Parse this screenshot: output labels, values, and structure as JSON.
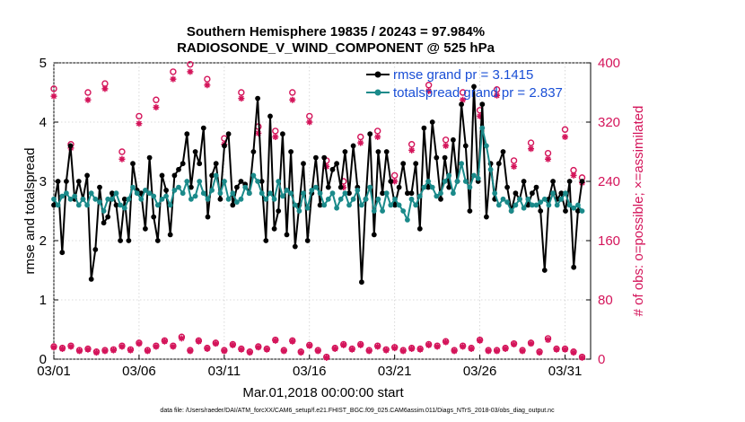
{
  "chart_data": {
    "type": "line",
    "title_line1": "Southern Hemisphere 19835 / 20243 = 97.984%",
    "title_line2": "RADIOSONDE_V_WIND_COMPONENT @ 525 hPa",
    "xlabel": "Mar.01,2018 00:00:00 start",
    "ylabel_left": "rmse and totalspread",
    "ylabel_right": "# of obs: o=possible; ×=assimilated",
    "footer": "data file: /Users/raeder/DAI/ATM_forcXX/CAM6_setup/f.e21.FHIST_BGC.f09_025.CAM6assim.011/Diags_NTrS_2018-03/obs_diag_output.nc",
    "xlim": [
      0,
      31.5
    ],
    "xticks": [
      0,
      5,
      10,
      15,
      20,
      25,
      30
    ],
    "xtick_labels": [
      "03/01",
      "03/06",
      "03/11",
      "03/16",
      "03/21",
      "03/26",
      "03/31"
    ],
    "ylim_left": [
      0,
      5
    ],
    "yticks_left": [
      0,
      1,
      2,
      3,
      4,
      5
    ],
    "ylim_right": [
      0,
      400
    ],
    "yticks_right": [
      0,
      80,
      160,
      240,
      320,
      400
    ],
    "legend": {
      "position": "top-right",
      "entries": [
        "rmse grand pr = 3.1415",
        "totalspread grand pr = 2.837"
      ]
    },
    "colors": {
      "rmse": "#000000",
      "spread": "#1a8a8a",
      "obs": "#d4145a",
      "legend_text": "#1a4fd6"
    },
    "series": [
      {
        "name": "rmse",
        "axis": "left",
        "values": [
          2.6,
          3.0,
          1.8,
          3.0,
          3.6,
          2.7,
          3.0,
          2.7,
          3.1,
          1.35,
          1.85,
          2.9,
          2.3,
          2.4,
          2.8,
          2.6,
          2.0,
          2.7,
          2.0,
          3.3,
          2.85,
          2.8,
          2.2,
          3.4,
          2.4,
          2.0,
          3.1,
          2.85,
          2.1,
          3.1,
          3.2,
          3.3,
          3.8,
          2.9,
          3.5,
          3.3,
          3.9,
          2.4,
          3.1,
          3.3,
          2.7,
          3.6,
          3.8,
          2.6,
          2.9,
          3.0,
          2.95,
          2.8,
          3.5,
          4.4,
          3.0,
          2.0,
          4.1,
          2.2,
          2.5,
          3.8,
          2.1,
          3.5,
          1.9,
          2.6,
          3.3,
          2.0,
          2.8,
          3.4,
          2.6,
          3.4,
          2.9,
          3.2,
          3.3,
          2.9,
          3.5,
          2.8,
          3.6,
          2.9,
          1.3,
          2.7,
          3.8,
          2.1,
          3.5,
          2.8,
          3.5,
          3.0,
          2.6,
          2.9,
          3.3,
          2.8,
          2.8,
          3.3,
          2.2,
          3.9,
          2.9,
          4.0,
          3.4,
          2.7,
          3.4,
          2.9,
          3.7,
          3.0,
          4.3,
          3.6,
          2.5,
          4.6,
          3.0,
          4.3,
          2.4,
          3.3,
          2.7,
          3.3,
          3.5,
          2.9,
          2.5,
          2.8,
          2.7,
          3.0,
          2.6,
          2.8,
          2.9,
          2.5,
          1.5,
          2.7,
          3.0,
          2.7,
          2.8,
          2.5,
          3.0,
          1.55,
          2.5,
          3.0
        ]
      },
      {
        "name": "totalspread",
        "axis": "left",
        "values": [
          2.7,
          2.6,
          2.75,
          2.8,
          2.7,
          2.75,
          2.6,
          2.7,
          2.6,
          2.8,
          2.7,
          2.65,
          2.5,
          2.7,
          2.7,
          2.8,
          2.6,
          2.55,
          2.7,
          2.9,
          2.8,
          2.7,
          2.85,
          2.8,
          2.75,
          2.6,
          2.7,
          2.75,
          2.6,
          2.85,
          2.9,
          2.8,
          3.0,
          2.7,
          2.75,
          3.0,
          2.8,
          2.7,
          2.85,
          3.1,
          2.8,
          3.0,
          2.7,
          2.8,
          2.65,
          2.7,
          2.9,
          2.8,
          3.1,
          3.0,
          2.8,
          2.7,
          2.8,
          2.7,
          3.0,
          2.75,
          2.85,
          2.8,
          2.6,
          2.5,
          2.8,
          2.55,
          2.85,
          2.9,
          2.8,
          2.6,
          2.7,
          2.8,
          2.55,
          2.7,
          2.8,
          2.6,
          2.7,
          2.85,
          2.6,
          2.7,
          2.9,
          2.5,
          2.7,
          2.5,
          2.8,
          2.6,
          2.7,
          2.6,
          2.5,
          2.35,
          2.7,
          2.6,
          2.75,
          2.9,
          3.0,
          2.9,
          2.75,
          2.8,
          3.0,
          3.1,
          2.8,
          3.0,
          3.3,
          3.0,
          2.9,
          3.1,
          3.05,
          3.9,
          3.6,
          3.2,
          2.8,
          2.6,
          2.7,
          2.65,
          2.5,
          2.6,
          2.7,
          2.55,
          2.7,
          2.6,
          2.6,
          2.65,
          2.7,
          2.6,
          2.8,
          2.6,
          2.7,
          2.8,
          2.6,
          2.55,
          2.6,
          2.5
        ]
      },
      {
        "name": "obs possible",
        "axis": "right",
        "marker": "circle",
        "x": [
          0,
          1,
          2,
          3,
          4,
          5,
          6,
          7,
          8,
          9,
          10,
          11,
          12,
          13,
          14,
          15,
          16,
          17,
          18,
          19,
          20,
          21,
          22,
          23,
          24,
          25,
          26,
          27,
          28,
          29,
          30,
          30.5,
          31
        ],
        "values": [
          365,
          290,
          360,
          372,
          280,
          328,
          350,
          388,
          398,
          378,
          298,
          360,
          314,
          308,
          360,
          328,
          268,
          240,
          300,
          308,
          248,
          290,
          370,
          296,
          360,
          336,
          364,
          268,
          292,
          278,
          310,
          255,
          245
        ]
      },
      {
        "name": "obs assimilated",
        "axis": "right",
        "marker": "asterisk",
        "x": [
          0,
          1,
          2,
          3,
          4,
          5,
          6,
          7,
          8,
          9,
          10,
          11,
          12,
          13,
          14,
          15,
          16,
          17,
          18,
          19,
          20,
          21,
          22,
          23,
          24,
          25,
          26,
          27,
          28,
          29,
          30,
          30.5,
          31
        ],
        "values": [
          355,
          285,
          350,
          365,
          270,
          318,
          340,
          378,
          388,
          370,
          290,
          352,
          305,
          300,
          350,
          320,
          260,
          232,
          292,
          300,
          240,
          282,
          362,
          288,
          350,
          328,
          356,
          260,
          284,
          270,
          300,
          248,
          238
        ]
      },
      {
        "name": "obs possible (low)",
        "axis": "right",
        "marker": "circle",
        "x": [
          0,
          0.5,
          1,
          1.5,
          2,
          2.5,
          3,
          3.5,
          4,
          4.5,
          5,
          5.5,
          6,
          6.5,
          7,
          7.5,
          8,
          8.5,
          9,
          9.5,
          10,
          10.5,
          11,
          11.5,
          12,
          12.5,
          13,
          13.5,
          14,
          14.5,
          15,
          15.5,
          16,
          16.5,
          17,
          17.5,
          18,
          18.5,
          19,
          19.5,
          20,
          20.5,
          21,
          21.5,
          22,
          22.5,
          23,
          23.5,
          24,
          24.5,
          25,
          25.5,
          26,
          26.5,
          27,
          27.5,
          28,
          28.5,
          29,
          29.5,
          30,
          30.5,
          31
        ],
        "values": [
          17,
          15,
          18,
          12,
          14,
          10,
          12,
          13,
          18,
          13,
          22,
          12,
          18,
          25,
          18,
          30,
          12,
          25,
          15,
          22,
          12,
          20,
          14,
          10,
          17,
          14,
          26,
          12,
          25,
          10,
          19,
          12,
          3,
          15,
          20,
          14,
          20,
          12,
          18,
          13,
          16,
          12,
          15,
          14,
          20,
          18,
          24,
          12,
          18,
          15,
          26,
          12,
          12,
          15,
          21,
          12,
          22,
          10,
          28,
          14,
          14,
          10,
          3
        ]
      },
      {
        "name": "obs assimilated (low)",
        "axis": "right",
        "marker": "asterisk",
        "x": [
          0,
          0.5,
          1,
          1.5,
          2,
          2.5,
          3,
          3.5,
          4,
          4.5,
          5,
          5.5,
          6,
          6.5,
          7,
          7.5,
          8,
          8.5,
          9,
          9.5,
          10,
          10.5,
          11,
          11.5,
          12,
          12.5,
          13,
          13.5,
          14,
          14.5,
          15,
          15.5,
          16,
          16.5,
          17,
          17.5,
          18,
          18.5,
          19,
          19.5,
          20,
          20.5,
          21,
          21.5,
          22,
          22.5,
          23,
          23.5,
          24,
          24.5,
          25,
          25.5,
          26,
          26.5,
          27,
          27.5,
          28,
          28.5,
          29,
          29.5,
          30,
          30.5,
          31
        ],
        "values": [
          16,
          14,
          17,
          11,
          13,
          9,
          11,
          12,
          17,
          12,
          21,
          11,
          17,
          24,
          17,
          28,
          11,
          24,
          14,
          21,
          11,
          19,
          13,
          9,
          16,
          13,
          25,
          11,
          24,
          9,
          18,
          11,
          2,
          14,
          19,
          13,
          19,
          11,
          17,
          12,
          15,
          11,
          14,
          13,
          19,
          17,
          23,
          11,
          17,
          14,
          25,
          11,
          11,
          14,
          20,
          11,
          21,
          9,
          26,
          13,
          13,
          9,
          2
        ]
      }
    ]
  }
}
